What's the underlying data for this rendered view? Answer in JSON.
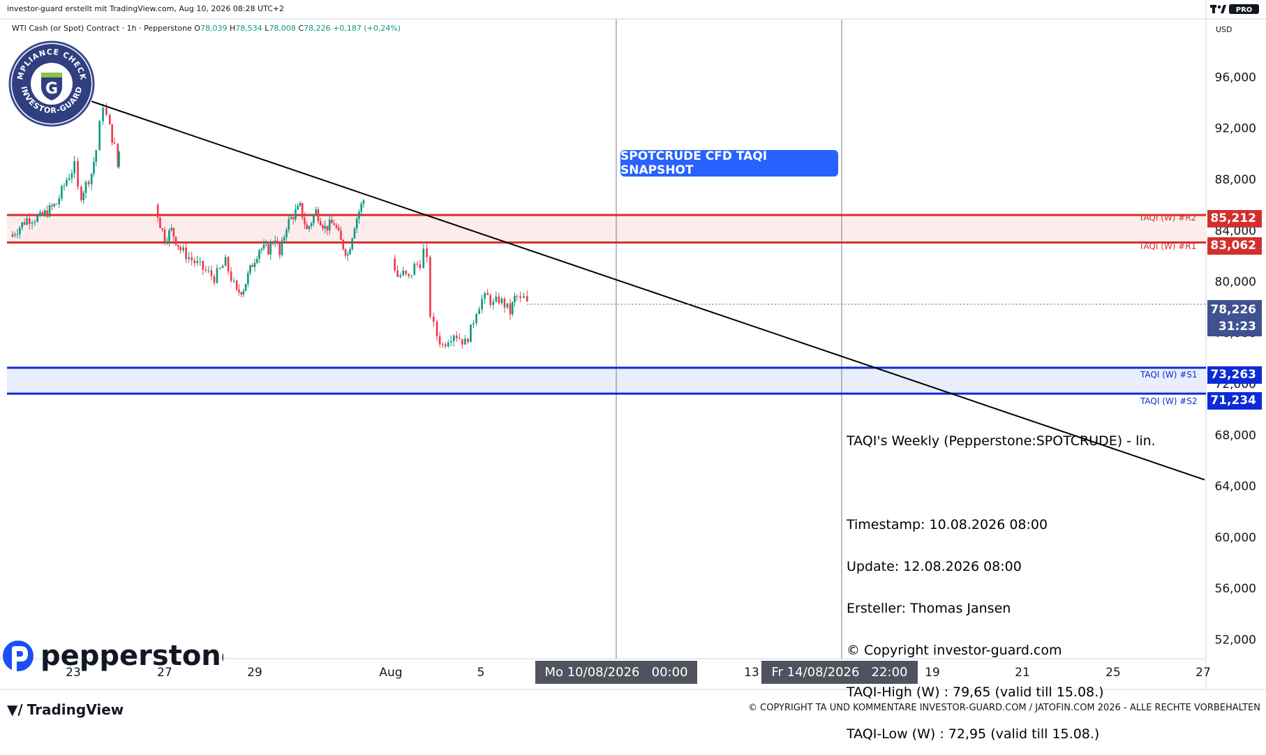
{
  "header": {
    "credit": "investor-guard erstellt mit TradingView.com, Aug 10, 2026 08:28 UTC+2",
    "symbol": "WTI Cash (or Spot) Contract · 1h · Pepperstone",
    "ohlc": {
      "o_label": "O",
      "o": "78,039",
      "h_label": "H",
      "h": "78,534",
      "l_label": "L",
      "l": "78,008",
      "c_label": "C",
      "c": "78,226",
      "change": "+0,187 (+0,24%)"
    },
    "currency": "USD"
  },
  "badge": {
    "text_top": "COMPLIANCE CHECKED",
    "text_bottom": "INVESTOR-GUARD",
    "letter": "G"
  },
  "brand": {
    "pepperstone": "pepperstone",
    "tradingview": "TradingView",
    "tv_pro": "PRO"
  },
  "snapshot_label": "SPOTCRUDE CFD TAQI SNAPSHOT",
  "levels": [
    {
      "name": "TAQI (W) #R2",
      "value": 85.212,
      "tag": "85,212",
      "color": "#d32f2f"
    },
    {
      "name": "TAQI (W) #R1",
      "value": 83.062,
      "tag": "83,062",
      "color": "#d32f2f"
    },
    {
      "name": "TAQI (W) #S1",
      "value": 73.263,
      "tag": "73,263",
      "color": "#0d2ad6"
    },
    {
      "name": "TAQI (W) #S2",
      "value": 71.234,
      "tag": "71,234",
      "color": "#0d2ad6"
    }
  ],
  "last_price": {
    "value": 78.226,
    "tag": "78,226",
    "countdown": "31:23",
    "color": "#3f5290"
  },
  "note": {
    "title": "TAQI's Weekly (Pepperstone:SPOTCRUDE) - lin.",
    "lines": [
      "Timestamp: 10.08.2026 08:00",
      "Update: 12.08.2026 08:00",
      "Ersteller: Thomas Jansen",
      "© Copyright investor-guard.com",
      "TAQI-High (W) : 79,65 (valid till 15.08.)",
      "TAQI-Low (W) : 72,95 (valid till 15.08.)"
    ]
  },
  "xaxis_highlight": [
    {
      "label": "Mo 10/08/2026",
      "time": "00:00"
    },
    {
      "label": "Fr 14/08/2026",
      "time": "22:00"
    }
  ],
  "footer_copyright": "© COPYRIGHT TA UND KOMMENTARE INVESTOR-GUARD.COM / JATOFIN.COM 2026 - ALLE RECHTE VORBEHALTEN",
  "chart_data": {
    "type": "candlestick",
    "title": "WTI Cash (or Spot) Contract · 1h · Pepperstone",
    "ylabel": "USD",
    "ylim": [
      50.5,
      100.5
    ],
    "yticks": [
      {
        "v": 96,
        "label": "96,000"
      },
      {
        "v": 92,
        "label": "92,000"
      },
      {
        "v": 88,
        "label": "88,000"
      },
      {
        "v": 84,
        "label": "84,000"
      },
      {
        "v": 80,
        "label": "80,000"
      },
      {
        "v": 76,
        "label": "76,000"
      },
      {
        "v": 72,
        "label": "72,000"
      },
      {
        "v": 68,
        "label": "68,000"
      },
      {
        "v": 64,
        "label": "64,000"
      },
      {
        "v": 60,
        "label": "60,000"
      },
      {
        "v": 56,
        "label": "56,000"
      },
      {
        "v": 52,
        "label": "52,000"
      }
    ],
    "xlim_days": [
      22.25,
      27.25
    ],
    "xticks": [
      {
        "d": 23,
        "label": "23"
      },
      {
        "d": 27,
        "label": "27"
      },
      {
        "d": 29,
        "label": "29"
      },
      {
        "d": 32,
        "label": "Aug"
      },
      {
        "d": 36,
        "label": "5"
      },
      {
        "d": 44,
        "label": "13"
      },
      {
        "d": 50,
        "label": "19"
      },
      {
        "d": 52,
        "label": "21"
      },
      {
        "d": 56,
        "label": "25"
      },
      {
        "d": 58,
        "label": "27"
      }
    ],
    "gaps": [
      {
        "from": 25.0,
        "to": 26.6,
        "pad": 1
      },
      {
        "from": 31.3,
        "to": 32.0,
        "pad": 1
      }
    ],
    "trendline": {
      "from": {
        "d": 23.8,
        "v": 94.1
      },
      "to": {
        "d": 58.1,
        "v": 64.5
      }
    },
    "vlines_days": [
      42.0,
      45.9
    ],
    "close_path": [
      [
        22.05,
        83.5
      ],
      [
        22.3,
        84.9
      ],
      [
        22.5,
        85.0
      ],
      [
        22.75,
        86.1
      ],
      [
        22.9,
        88.0
      ],
      [
        23.05,
        89.0
      ],
      [
        23.2,
        87.2
      ],
      [
        23.35,
        86.8
      ],
      [
        23.55,
        87.6
      ],
      [
        23.8,
        88.5
      ],
      [
        24.0,
        90.3
      ],
      [
        24.15,
        92.2
      ],
      [
        24.3,
        93.9
      ],
      [
        24.45,
        92.9
      ],
      [
        24.6,
        92.0
      ],
      [
        24.8,
        90.5
      ],
      [
        24.95,
        89.0
      ],
      [
        25.0,
        90.2
      ],
      [
        26.6,
        86.0
      ],
      [
        26.8,
        84.5
      ],
      [
        27.0,
        83.4
      ],
      [
        27.15,
        84.0
      ],
      [
        27.35,
        82.5
      ],
      [
        27.6,
        81.7
      ],
      [
        27.85,
        81.0
      ],
      [
        28.1,
        80.3
      ],
      [
        28.35,
        81.5
      ],
      [
        28.6,
        79.1
      ],
      [
        28.75,
        79.5
      ],
      [
        28.95,
        81.4
      ],
      [
        29.1,
        82.6
      ],
      [
        29.3,
        82.5
      ],
      [
        29.45,
        83.5
      ],
      [
        29.55,
        82.0
      ],
      [
        29.7,
        84.4
      ],
      [
        29.85,
        85.2
      ],
      [
        30.0,
        85.8
      ],
      [
        30.15,
        84.0
      ],
      [
        30.35,
        85.5
      ],
      [
        30.55,
        84.2
      ],
      [
        30.75,
        84.6
      ],
      [
        30.9,
        83.1
      ],
      [
        31.05,
        82.1
      ],
      [
        31.2,
        84.5
      ],
      [
        31.3,
        85.5
      ],
      [
        31.4,
        86.4
      ],
      [
        32.05,
        81.8
      ],
      [
        32.3,
        80.4
      ],
      [
        32.55,
        80.6
      ],
      [
        32.8,
        80.2
      ],
      [
        33.05,
        81.2
      ],
      [
        33.3,
        81.5
      ],
      [
        33.45,
        82.4
      ],
      [
        33.6,
        81.5
      ],
      [
        33.75,
        77.5
      ],
      [
        33.9,
        76.5
      ],
      [
        34.05,
        75.8
      ],
      [
        34.3,
        75.0
      ],
      [
        34.55,
        75.6
      ],
      [
        34.8,
        76.0
      ],
      [
        35.05,
        75.6
      ],
      [
        35.3,
        75.2
      ],
      [
        35.55,
        76.2
      ],
      [
        35.8,
        77.8
      ],
      [
        36.05,
        78.6
      ],
      [
        36.3,
        78.8
      ],
      [
        36.55,
        78.2
      ],
      [
        36.8,
        78.6
      ],
      [
        37.05,
        78.2
      ],
      [
        37.3,
        77.6
      ],
      [
        37.5,
        78.7
      ],
      [
        37.6,
        78.8
      ],
      [
        37.75,
        78.5
      ],
      [
        37.9,
        78.7
      ],
      [
        38.05,
        78.2
      ]
    ],
    "candles": "synthesized along close_path",
    "colors": {
      "up": "#089981",
      "down": "#f23645",
      "trendline": "#000000",
      "r_zone": "#fdecec",
      "s_zone": "#e9edfc"
    }
  }
}
